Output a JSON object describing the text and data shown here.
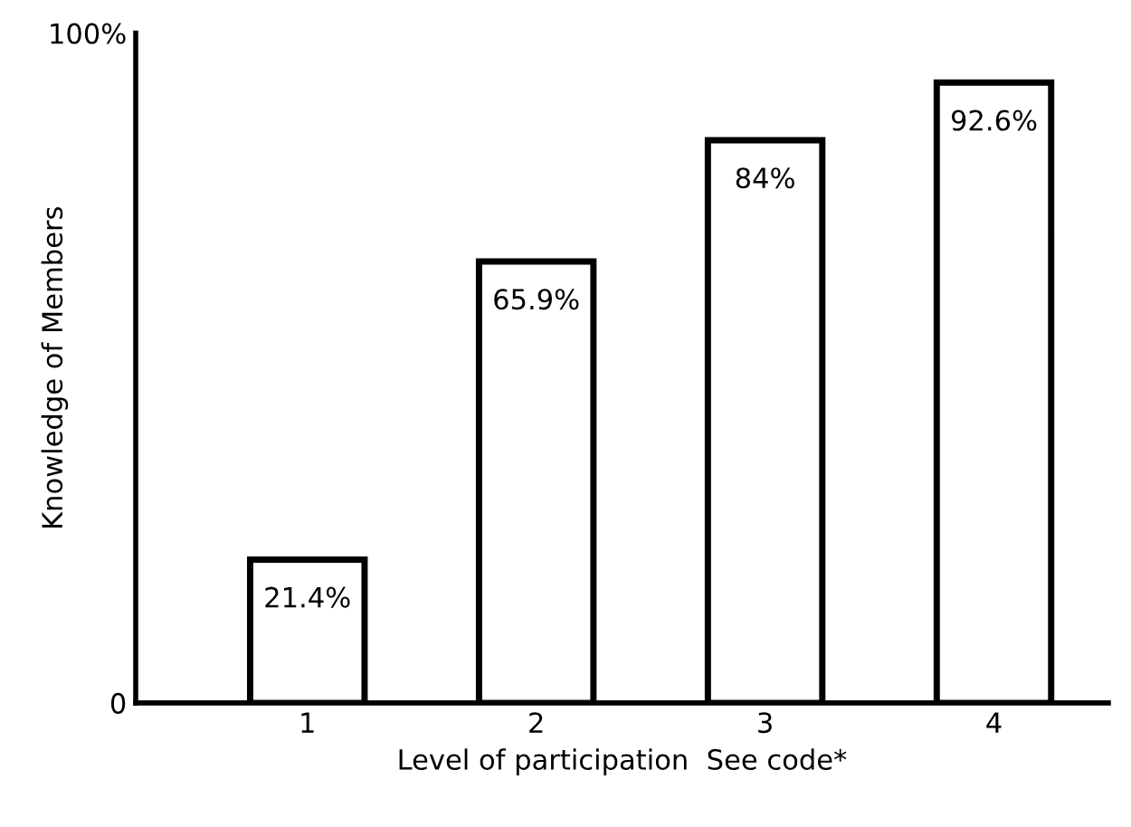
{
  "chart_data": {
    "type": "bar",
    "categories": [
      "1",
      "2",
      "3",
      "4"
    ],
    "values": [
      21.4,
      65.9,
      84,
      92.6
    ],
    "value_labels": [
      "21.4%",
      "65.9%",
      "84%",
      "92.6%"
    ],
    "color": "#ffffff",
    "xlabel": "Level of participation  See code*",
    "ylabel": "Knowledge of Members",
    "ylim": [
      0,
      100
    ],
    "yticks": [
      {
        "value": 0,
        "label": "0"
      },
      {
        "value": 100,
        "label": "100%"
      }
    ],
    "grid": false,
    "legend": false
  }
}
